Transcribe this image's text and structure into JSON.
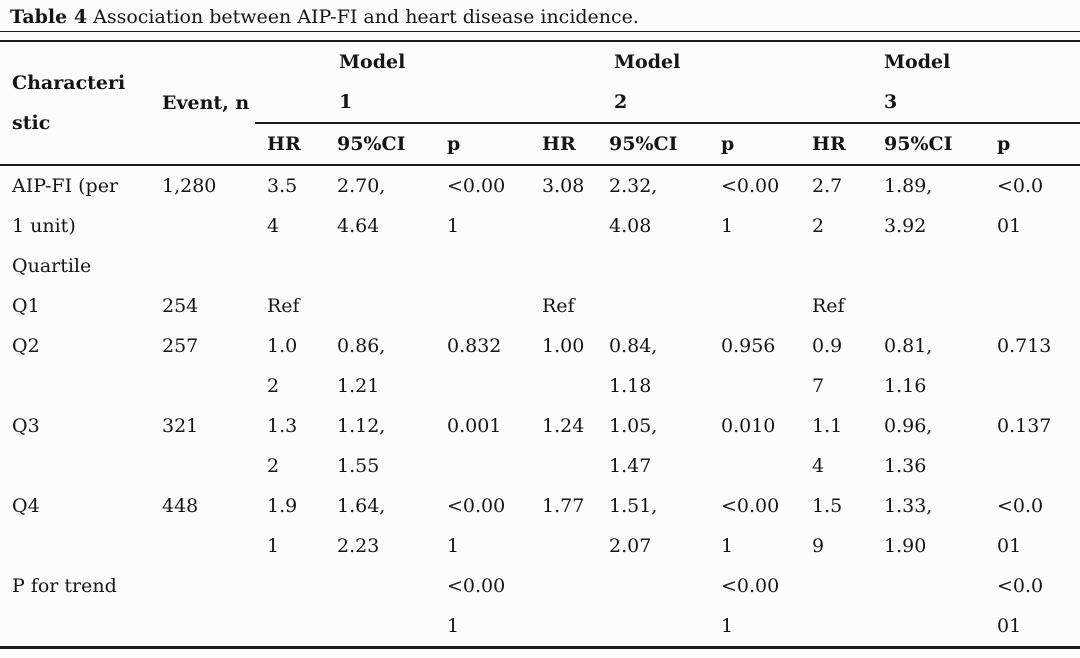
{
  "title": {
    "label": "Table 4",
    "text": "Association between AIP-FI and heart disease incidence."
  },
  "header": {
    "characteristic": "Characteri\nstic",
    "event": "Event, n",
    "models": [
      "Model\n1",
      "Model\n2",
      "Model\n3"
    ],
    "sub_labels": [
      "HR",
      "95%CI",
      "p",
      "HR",
      "95%CI",
      "p",
      "HR",
      "95%CI",
      "p"
    ]
  },
  "rows": [
    {
      "cells": [
        "AIP-FI (per\n1 unit)",
        "1,280",
        "3.5\n4",
        "2.70,\n4.64",
        "<0.00\n1",
        "3.08",
        "2.32,\n4.08",
        "<0.00\n1",
        "2.7\n2",
        "1.89,\n3.92",
        "<0.0\n01"
      ]
    },
    {
      "cells": [
        "Quartile",
        "",
        "",
        "",
        "",
        "",
        "",
        "",
        "",
        "",
        ""
      ]
    },
    {
      "cells": [
        "Q1",
        "254",
        "Ref",
        "",
        "",
        "Ref",
        "",
        "",
        "Ref",
        "",
        ""
      ]
    },
    {
      "cells": [
        "Q2",
        "257",
        "1.0\n2",
        "0.86,\n1.21",
        "0.832",
        "1.00",
        "0.84,\n1.18",
        "0.956",
        "0.9\n7",
        "0.81,\n1.16",
        "0.713"
      ]
    },
    {
      "cells": [
        "Q3",
        "321",
        "1.3\n2",
        "1.12,\n1.55",
        "0.001",
        "1.24",
        "1.05,\n1.47",
        "0.010",
        "1.1\n4",
        "0.96,\n1.36",
        "0.137"
      ]
    },
    {
      "cells": [
        "Q4",
        "448",
        "1.9\n1",
        "1.64,\n2.23",
        "<0.00\n1",
        "1.77",
        "1.51,\n2.07",
        "<0.00\n1",
        "1.5\n9",
        "1.33,\n1.90",
        "<0.0\n01"
      ]
    },
    {
      "cells": [
        "P for trend",
        "",
        "",
        "",
        "<0.00\n1",
        "",
        "",
        "<0.00\n1",
        "",
        "",
        "<0.0\n01"
      ]
    }
  ]
}
